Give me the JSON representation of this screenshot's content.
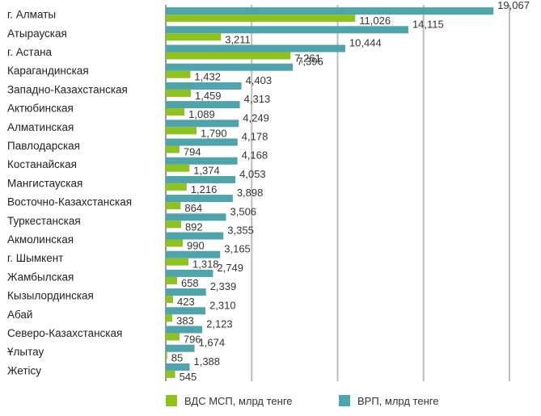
{
  "chart_data": {
    "type": "bar",
    "orientation": "horizontal",
    "categories": [
      "г. Алматы",
      "Атырауская",
      "г. Астана",
      "Карагандинская",
      "Западно-Казахстанская",
      "Актюбинская",
      "Алматинская",
      "Павлодарская",
      "Костанайская",
      "Мангистауская",
      "Восточно-Казахстанская",
      "Туркестанская",
      "Акмолинская",
      "г. Шымкент",
      "Жамбылская",
      "Кызылординская",
      "Абай",
      "Северо-Казахстанская",
      "Ұлытау",
      "Жетісу"
    ],
    "series": [
      {
        "name": "ВРП, млрд тенге",
        "color": "#4fa3ab",
        "values": [
          19067,
          14115,
          10444,
          7396,
          4403,
          4313,
          4249,
          4178,
          4168,
          4053,
          3898,
          3506,
          3355,
          3165,
          2749,
          2339,
          2310,
          2123,
          1674,
          1388
        ],
        "labels": [
          "19,067",
          "14,115",
          "10,444",
          "7,396",
          "4,403",
          "4,313",
          "4,249",
          "4,178",
          "4,168",
          "4,053",
          "3,898",
          "3,506",
          "3,355",
          "3,165",
          "2,749",
          "2,339",
          "2,310",
          "2,123",
          "1,674",
          "1,388"
        ]
      },
      {
        "name": "ВДС МСП, млрд тенге",
        "color": "#8dc21f",
        "values": [
          11026,
          3211,
          7261,
          1432,
          1459,
          1089,
          1790,
          794,
          1374,
          1216,
          864,
          892,
          990,
          1318,
          658,
          423,
          383,
          796,
          85,
          545
        ],
        "labels": [
          "11,026",
          "3,211",
          "7,261",
          "1,432",
          "1,459",
          "1,089",
          "1,790",
          "794",
          "1,374",
          "1,216",
          "864",
          "892",
          "990",
          "1,318",
          "658",
          "423",
          "383",
          "796",
          "85",
          "545"
        ]
      }
    ],
    "legend": {
      "position": "bottom",
      "items": [
        {
          "label": "ВДС МСП, млрд тенге",
          "color": "#8dc21f"
        },
        {
          "label": "ВРП, млрд тенге",
          "color": "#4fa3ab"
        }
      ]
    },
    "xlim": [
      0,
      20000
    ],
    "grid": true,
    "gridline_step": 5000
  }
}
